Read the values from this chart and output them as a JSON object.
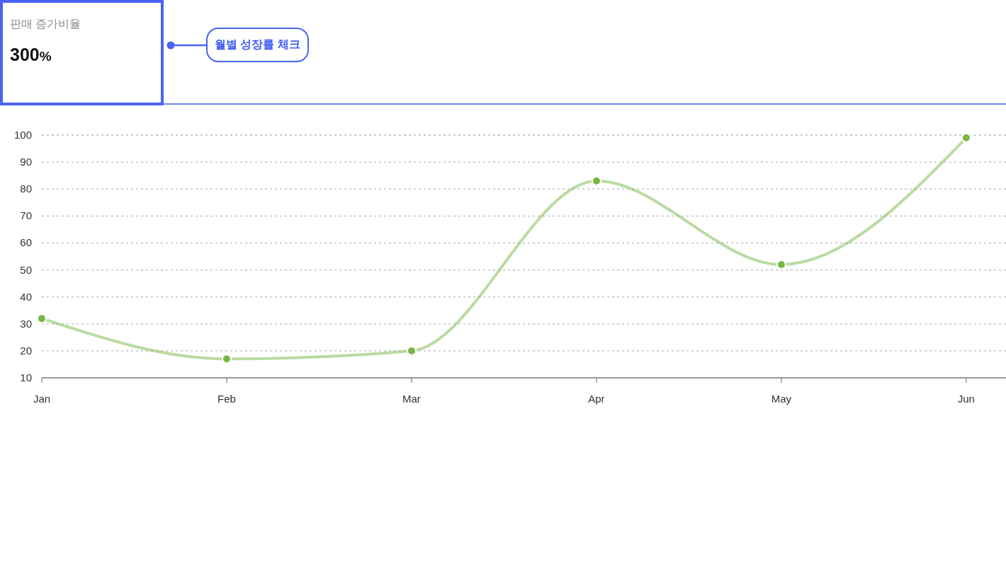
{
  "chart_data": [
    {
      "type": "other",
      "title": "판매 증가비율",
      "annotations": [
        "300%",
        "월별 성장률 체크"
      ]
    },
    {
      "type": "line",
      "categories": [
        "Jan",
        "Feb",
        "Mar",
        "Apr",
        "May",
        "Jun"
      ],
      "series": [
        {
          "color": "#77b843",
          "values": [
            32,
            17,
            20,
            83,
            52,
            99
          ]
        }
      ],
      "ylim": [
        10,
        100
      ],
      "yticks": [
        10,
        20,
        30,
        40,
        50,
        60,
        70,
        80,
        90,
        100
      ],
      "grid": "y",
      "marker": "circle",
      "line_style": "solid"
    }
  ]
}
